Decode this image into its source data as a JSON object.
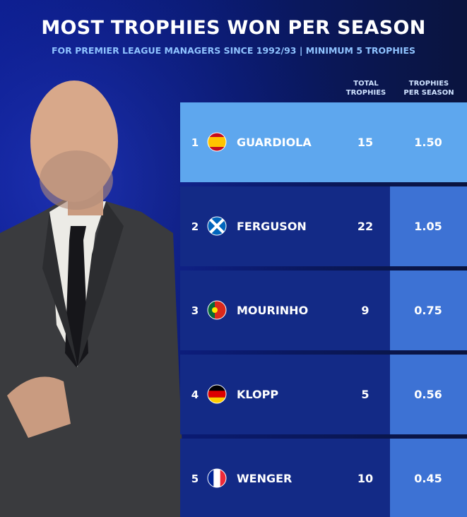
{
  "header": {
    "title": "MOST TROPHIES WON PER SEASON",
    "subtitle": "FOR PREMIER LEAGUE MANAGERS SINCE 1992/93 | MINIMUM 5 TROPHIES"
  },
  "table": {
    "columns": [
      "TOTAL TROPHIES",
      "TROPHIES PER SEASON"
    ],
    "rows": [
      [
        "1",
        "GUARDIOLA",
        "15",
        "1.50"
      ],
      [
        "2",
        "FERGUSON",
        "22",
        "1.05"
      ],
      [
        "3",
        "MOURINHO",
        "9",
        "0.75"
      ],
      [
        "4",
        "KLOPP",
        "5",
        "0.56"
      ],
      [
        "5",
        "WENGER",
        "10",
        "0.45"
      ]
    ]
  }
}
